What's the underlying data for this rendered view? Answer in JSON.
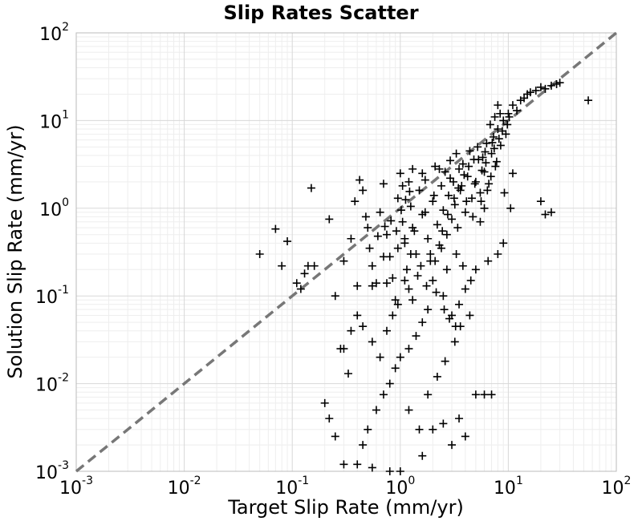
{
  "chart_data": {
    "type": "scatter",
    "title": "Slip Rates Scatter",
    "xlabel": "Target Slip Rate (mm/yr)",
    "ylabel": "Solution Slip Rate (mm/yr)",
    "xscale": "log",
    "yscale": "log",
    "xlim": [
      0.001,
      100
    ],
    "ylim": [
      0.001,
      100
    ],
    "grid": true,
    "marker": "plus",
    "marker_color": "#000000",
    "reference_line": {
      "style": "dashed",
      "color": "#777777",
      "from": [
        0.001,
        0.001
      ],
      "to": [
        100,
        100
      ]
    },
    "xticks": [
      {
        "base": "10",
        "exp": "-3"
      },
      {
        "base": "10",
        "exp": "-2"
      },
      {
        "base": "10",
        "exp": "-1"
      },
      {
        "base": "10",
        "exp": "0"
      },
      {
        "base": "10",
        "exp": "1"
      },
      {
        "base": "10",
        "exp": "2"
      }
    ],
    "yticks": [
      {
        "base": "10",
        "exp": "-3"
      },
      {
        "base": "10",
        "exp": "-2"
      },
      {
        "base": "10",
        "exp": "-1"
      },
      {
        "base": "10",
        "exp": "0"
      },
      {
        "base": "10",
        "exp": "1"
      },
      {
        "base": "10",
        "exp": "2"
      }
    ],
    "points": [
      [
        0.05,
        0.3
      ],
      [
        0.07,
        0.58
      ],
      [
        0.08,
        0.22
      ],
      [
        0.09,
        0.42
      ],
      [
        0.12,
        0.12
      ],
      [
        0.15,
        1.7
      ],
      [
        0.16,
        0.22
      ],
      [
        0.22,
        0.75
      ],
      [
        0.25,
        0.1
      ],
      [
        0.3,
        0.25
      ],
      [
        0.35,
        0.45
      ],
      [
        0.38,
        1.2
      ],
      [
        0.42,
        2.1
      ],
      [
        0.45,
        1.6
      ],
      [
        0.48,
        0.8
      ],
      [
        0.5,
        0.6
      ],
      [
        0.52,
        0.35
      ],
      [
        0.55,
        0.22
      ],
      [
        0.6,
        0.14
      ],
      [
        0.65,
        0.9
      ],
      [
        0.7,
        1.9
      ],
      [
        0.75,
        0.5
      ],
      [
        0.8,
        0.28
      ],
      [
        0.85,
        0.16
      ],
      [
        0.9,
        0.09
      ],
      [
        0.95,
        1.3
      ],
      [
        1.0,
        2.5
      ],
      [
        1.05,
        0.7
      ],
      [
        1.1,
        0.4
      ],
      [
        1.15,
        0.2
      ],
      [
        1.2,
        0.12
      ],
      [
        1.25,
        1.05
      ],
      [
        1.3,
        2.8
      ],
      [
        1.35,
        0.55
      ],
      [
        1.4,
        0.3
      ],
      [
        1.45,
        0.17
      ],
      [
        1.5,
        1.6
      ],
      [
        1.6,
        0.85
      ],
      [
        1.7,
        2.1
      ],
      [
        1.8,
        0.45
      ],
      [
        1.9,
        0.25
      ],
      [
        2.0,
        1.2
      ],
      [
        2.1,
        3.0
      ],
      [
        2.2,
        0.65
      ],
      [
        2.3,
        0.38
      ],
      [
        2.4,
        1.8
      ],
      [
        2.5,
        0.95
      ],
      [
        2.6,
        2.6
      ],
      [
        2.7,
        0.5
      ],
      [
        2.8,
        1.4
      ],
      [
        2.9,
        3.5
      ],
      [
        3.0,
        0.75
      ],
      [
        3.1,
        2.0
      ],
      [
        3.2,
        1.1
      ],
      [
        3.3,
        4.2
      ],
      [
        3.4,
        0.6
      ],
      [
        3.5,
        2.8
      ],
      [
        3.6,
        1.6
      ],
      [
        3.8,
        3.2
      ],
      [
        4.0,
        0.9
      ],
      [
        4.2,
        2.3
      ],
      [
        4.4,
        4.5
      ],
      [
        4.6,
        1.3
      ],
      [
        4.8,
        3.6
      ],
      [
        5.0,
        2.0
      ],
      [
        5.2,
        5.0
      ],
      [
        5.5,
        1.5
      ],
      [
        5.8,
        3.8
      ],
      [
        6.0,
        2.6
      ],
      [
        6.3,
        5.5
      ],
      [
        6.6,
        1.9
      ],
      [
        7.0,
        4.2
      ],
      [
        7.3,
        6.5
      ],
      [
        7.6,
        3.0
      ],
      [
        8.0,
        8.0
      ],
      [
        8.5,
        5.2
      ],
      [
        9.0,
        10.0
      ],
      [
        9.5,
        7.0
      ],
      [
        10.0,
        12.0
      ],
      [
        11.0,
        15.0
      ],
      [
        12.0,
        13.0
      ],
      [
        13.0,
        17.0
      ],
      [
        14.0,
        18.0
      ],
      [
        15.0,
        20.0
      ],
      [
        16.0,
        21.0
      ],
      [
        18.0,
        22.0
      ],
      [
        20.0,
        24.0
      ],
      [
        22.0,
        23.0
      ],
      [
        25.0,
        25.0
      ],
      [
        28.0,
        26.0
      ],
      [
        30.0,
        27.0
      ],
      [
        55.0,
        17.0
      ],
      [
        20.0,
        1.2
      ],
      [
        22.0,
        0.85
      ],
      [
        25.0,
        0.9
      ],
      [
        8.0,
        15.0
      ],
      [
        7.5,
        11.0
      ],
      [
        6.8,
        9.0
      ],
      [
        9.2,
        1.5
      ],
      [
        10.5,
        1.0
      ],
      [
        11.0,
        2.5
      ],
      [
        6.0,
        1.0
      ],
      [
        5.5,
        0.7
      ],
      [
        8.0,
        0.3
      ],
      [
        9.0,
        0.4
      ],
      [
        6.5,
        0.25
      ],
      [
        5.0,
        0.0075
      ],
      [
        6.0,
        0.0075
      ],
      [
        7.0,
        0.0075
      ],
      [
        4.0,
        0.12
      ],
      [
        3.5,
        0.08
      ],
      [
        3.0,
        0.06
      ],
      [
        2.5,
        0.1
      ],
      [
        2.0,
        0.15
      ],
      [
        1.8,
        0.07
      ],
      [
        1.6,
        0.05
      ],
      [
        1.4,
        0.035
      ],
      [
        1.2,
        0.025
      ],
      [
        1.0,
        0.02
      ],
      [
        0.9,
        0.015
      ],
      [
        0.8,
        0.01
      ],
      [
        0.7,
        0.0075
      ],
      [
        0.6,
        0.005
      ],
      [
        0.5,
        0.003
      ],
      [
        0.45,
        0.002
      ],
      [
        0.4,
        0.0012
      ],
      [
        1.2,
        0.005
      ],
      [
        1.5,
        0.003
      ],
      [
        2.0,
        0.003
      ],
      [
        2.5,
        0.0035
      ],
      [
        3.0,
        0.002
      ],
      [
        3.5,
        0.004
      ],
      [
        4.0,
        0.0025
      ],
      [
        1.8,
        0.0075
      ],
      [
        2.2,
        0.012
      ],
      [
        2.6,
        0.018
      ],
      [
        3.2,
        0.03
      ],
      [
        3.6,
        0.045
      ],
      [
        4.4,
        0.06
      ],
      [
        5.0,
        0.2
      ],
      [
        0.2,
        0.006
      ],
      [
        0.22,
        0.004
      ],
      [
        0.25,
        0.0025
      ],
      [
        0.3,
        0.025
      ],
      [
        0.35,
        0.04
      ],
      [
        0.4,
        0.06
      ],
      [
        0.45,
        0.045
      ],
      [
        0.28,
        0.025
      ],
      [
        0.33,
        0.013
      ],
      [
        0.55,
        0.03
      ],
      [
        0.65,
        0.02
      ],
      [
        0.75,
        0.04
      ],
      [
        0.85,
        0.06
      ],
      [
        0.95,
        0.08
      ],
      [
        0.3,
        0.0012
      ],
      [
        0.55,
        0.0011
      ],
      [
        0.8,
        0.001
      ],
      [
        1.0,
        0.001
      ],
      [
        1.6,
        0.0015
      ],
      [
        0.14,
        0.22
      ],
      [
        0.13,
        0.18
      ],
      [
        0.11,
        0.14
      ],
      [
        0.4,
        0.13
      ],
      [
        0.55,
        0.13
      ],
      [
        0.75,
        0.14
      ],
      [
        1.1,
        0.15
      ],
      [
        1.3,
        0.09
      ],
      [
        0.7,
        0.28
      ],
      [
        1.05,
        1.8
      ],
      [
        1.2,
        2.0
      ],
      [
        1.6,
        2.5
      ],
      [
        2.3,
        2.8
      ],
      [
        2.9,
        2.2
      ],
      [
        3.7,
        1.8
      ],
      [
        4.3,
        3.0
      ],
      [
        5.3,
        3.6
      ],
      [
        6.1,
        4.4
      ],
      [
        7.1,
        5.6
      ],
      [
        8.2,
        6.2
      ],
      [
        4.7,
        0.8
      ],
      [
        5.6,
        1.2
      ],
      [
        6.4,
        1.6
      ],
      [
        2.1,
        0.25
      ],
      [
        2.4,
        0.35
      ],
      [
        2.7,
        0.2
      ],
      [
        3.3,
        0.3
      ],
      [
        3.8,
        0.22
      ],
      [
        4.5,
        0.15
      ],
      [
        1.9,
        0.3
      ],
      [
        1.3,
        0.6
      ],
      [
        1.1,
        0.45
      ],
      [
        0.95,
        0.35
      ],
      [
        1.7,
        0.9
      ],
      [
        2.05,
        1.4
      ],
      [
        2.45,
        0.55
      ],
      [
        2.75,
        0.85
      ],
      [
        3.15,
        1.3
      ],
      [
        3.45,
        1.7
      ],
      [
        3.9,
        2.4
      ],
      [
        4.1,
        1.2
      ],
      [
        4.9,
        1.9
      ],
      [
        5.7,
        2.7
      ],
      [
        6.2,
        3.3
      ],
      [
        7.4,
        4.8
      ],
      [
        8.8,
        7.6
      ],
      [
        9.8,
        9.0
      ],
      [
        10.2,
        11.0
      ],
      [
        8.4,
        12.0
      ],
      [
        7.8,
        3.4
      ],
      [
        6.9,
        2.3
      ],
      [
        1.25,
        0.3
      ],
      [
        1.55,
        0.22
      ],
      [
        1.75,
        0.13
      ],
      [
        2.15,
        0.11
      ],
      [
        2.55,
        0.07
      ],
      [
        2.85,
        0.055
      ],
      [
        3.25,
        0.045
      ],
      [
        0.62,
        0.48
      ],
      [
        0.72,
        0.62
      ],
      [
        0.82,
        0.72
      ],
      [
        0.92,
        0.55
      ],
      [
        1.02,
        0.95
      ],
      [
        1.12,
        1.25
      ],
      [
        1.22,
        1.55
      ]
    ]
  }
}
